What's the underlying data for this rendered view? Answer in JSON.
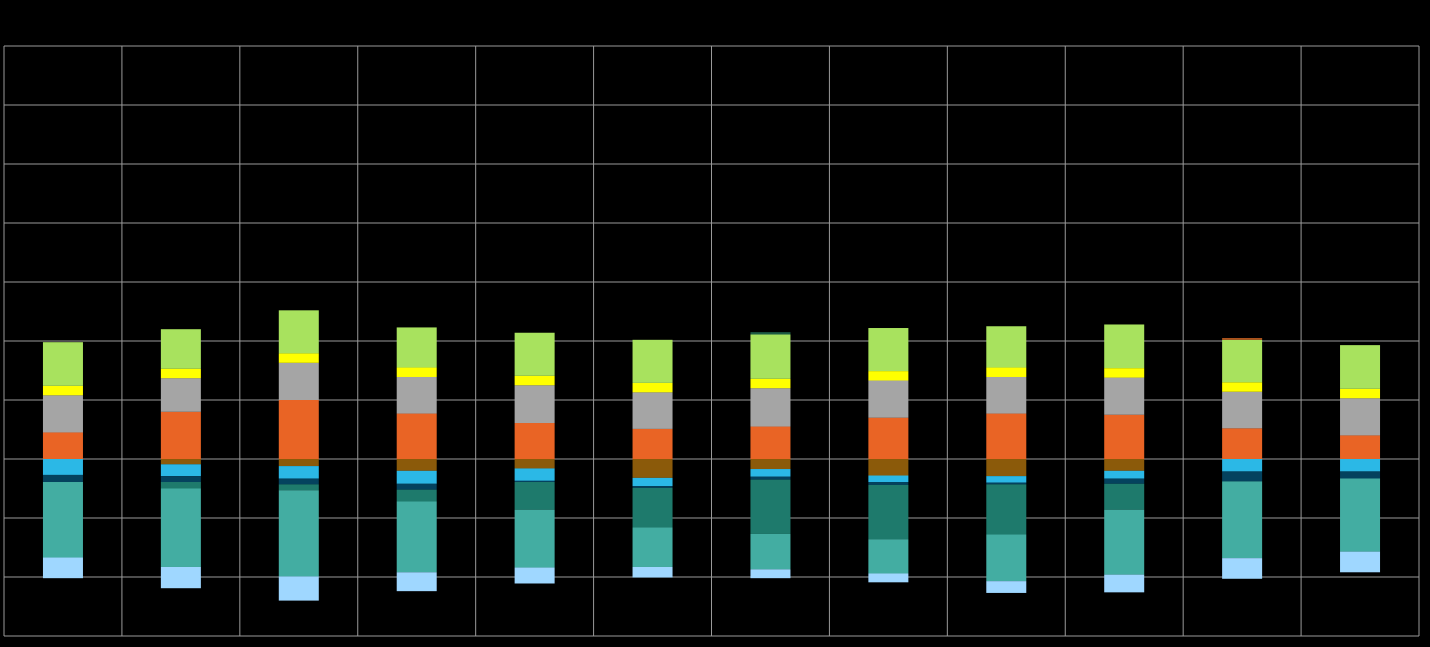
{
  "chart_data": {
    "type": "bar",
    "stacked": true,
    "title": "",
    "xlabel": "",
    "ylabel": "",
    "grid": true,
    "legend": "none",
    "ylim": [
      -300,
      700
    ],
    "categories": [
      "",
      "",
      "",
      "",
      "",
      "",
      "",
      "",
      "",
      "",
      "",
      ""
    ],
    "series": [
      {
        "key": "brown",
        "color": "#8B5A0A",
        "values": [
          0,
          -9,
          -12,
          -20,
          -16,
          -32,
          -17,
          -28,
          -29,
          -20,
          0,
          0
        ]
      },
      {
        "key": "cyan",
        "color": "#2BB8E6",
        "values": [
          -27,
          -20,
          -21,
          -22,
          -21,
          -14,
          -13,
          -11,
          -11,
          -13,
          -21,
          -21
        ]
      },
      {
        "key": "navy",
        "color": "#04425E",
        "values": [
          -12,
          -10,
          -10,
          -10,
          -2,
          -3,
          -5,
          -5,
          -3,
          -9,
          -17,
          -12
        ]
      },
      {
        "key": "darkteal",
        "color": "#1E7A6C",
        "values": [
          0,
          -11,
          -10,
          -20,
          -47,
          -67,
          -92,
          -92,
          -85,
          -44,
          0,
          0
        ]
      },
      {
        "key": "teal",
        "color": "#43ADA2",
        "values": [
          -128,
          -133,
          -146,
          -120,
          -98,
          -67,
          -60,
          -58,
          -79,
          -110,
          -130,
          -124
        ]
      },
      {
        "key": "lightblue",
        "color": "#9FD7FF",
        "values": [
          -35,
          -36,
          -41,
          -32,
          -27,
          -18,
          -15,
          -15,
          -20,
          -30,
          -35,
          -35
        ]
      },
      {
        "key": "orange",
        "color": "#E96425",
        "values": [
          45,
          80,
          100,
          77,
          61,
          51,
          55,
          70,
          77,
          75,
          52,
          40
        ]
      },
      {
        "key": "gray",
        "color": "#A5A5A5",
        "values": [
          63,
          57,
          63,
          62,
          64,
          62,
          65,
          63,
          62,
          63,
          62,
          63
        ]
      },
      {
        "key": "yellow",
        "color": "#FFFF00",
        "values": [
          16,
          16,
          16,
          16,
          16,
          16,
          16,
          16,
          16,
          16,
          16,
          16
        ]
      },
      {
        "key": "green",
        "color": "#A8E25E",
        "values": [
          74,
          67,
          73,
          68,
          73,
          73,
          75,
          73,
          70,
          74,
          72,
          74
        ]
      },
      {
        "key": "darkgreen",
        "color": "#1C5A43",
        "values": [
          0,
          0,
          0,
          0,
          0,
          0,
          4,
          0,
          0,
          0,
          0,
          0
        ]
      },
      {
        "key": "rust",
        "color": "#B4561E",
        "values": [
          0,
          0,
          0,
          0,
          0,
          0,
          0,
          0,
          0,
          0,
          3,
          0
        ]
      }
    ]
  },
  "colors": {
    "background": "#000000",
    "grid": "#9A9A9A"
  }
}
